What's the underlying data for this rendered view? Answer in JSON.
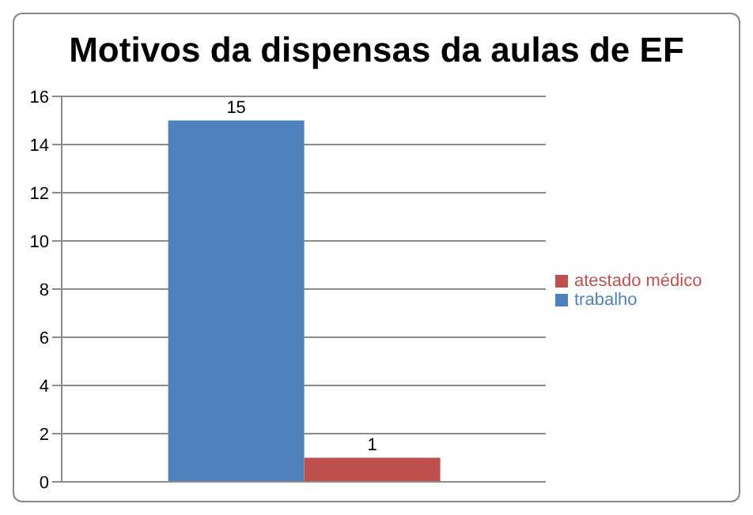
{
  "chart_data": {
    "type": "bar",
    "title": "Motivos da dispensas da aulas de EF",
    "categories": [
      null
    ],
    "series": [
      {
        "name": "trabalho",
        "color": "#4f81bd",
        "values": [
          15
        ]
      },
      {
        "name": "atestado médico",
        "color": "#c0504d",
        "values": [
          1
        ]
      }
    ],
    "ylim": [
      0,
      16
    ],
    "yticks": [
      0,
      2,
      4,
      6,
      8,
      10,
      12,
      14,
      16
    ],
    "grid": "y",
    "legend": "right",
    "data_labels": true
  }
}
